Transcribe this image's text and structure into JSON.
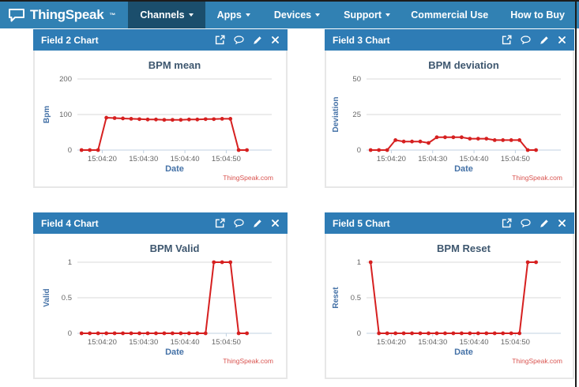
{
  "navbar": {
    "brand": "ThingSpeak",
    "brand_tm": "™",
    "items": [
      {
        "label": "Channels",
        "active": true
      },
      {
        "label": "Apps",
        "active": false
      },
      {
        "label": "Devices",
        "active": false
      },
      {
        "label": "Support",
        "active": false
      }
    ],
    "right_items": [
      {
        "label": "Commercial Use"
      },
      {
        "label": "How to Buy"
      }
    ]
  },
  "panels": [
    {
      "header": "Field 2 Chart",
      "icons": [
        "open-external-icon",
        "comment-icon",
        "edit-pencil-icon",
        "close-icon"
      ]
    },
    {
      "header": "Field 3 Chart",
      "icons": [
        "open-external-icon",
        "comment-icon",
        "edit-pencil-icon",
        "close-icon"
      ]
    },
    {
      "header": "Field 4 Chart",
      "icons": [
        "open-external-icon",
        "comment-icon",
        "edit-pencil-icon",
        "close-icon"
      ]
    },
    {
      "header": "Field 5 Chart",
      "icons": [
        "open-external-icon",
        "comment-icon",
        "edit-pencil-icon",
        "close-icon"
      ]
    }
  ],
  "colors": {
    "navbar_bg": "#3181b3",
    "navbar_active_bg": "#1b4e6c",
    "panel_header_bg": "#2e7cb5",
    "series_red": "#d62020",
    "credits_red": "#d9534f",
    "title_blue": "#3E576F",
    "axis_title_blue": "#4572A7",
    "tick_label_gray": "#666666",
    "grid_gray": "#d8d8d8",
    "axis_line_blue": "#c0d0e0"
  },
  "chart_data": [
    {
      "type": "line",
      "title": "BPM mean",
      "xlabel": "Date",
      "ylabel": "Bpm",
      "credits": "ThingSpeak.com",
      "ylim": [
        0,
        200
      ],
      "yticks": [
        0,
        100,
        200
      ],
      "ytick_labels": [
        "0",
        "100",
        "200"
      ],
      "xlim": [
        14,
        61
      ],
      "xticks": [
        20,
        30,
        40,
        50
      ],
      "xtick_labels": [
        "15:04:20",
        "15:04:30",
        "15:04:40",
        "15:04:50"
      ],
      "x_seconds": [
        15,
        17,
        19,
        21,
        23,
        25,
        27,
        29,
        31,
        33,
        35,
        37,
        39,
        41,
        43,
        45,
        47,
        49,
        51,
        53,
        55
      ],
      "values": [
        0,
        0,
        0,
        91,
        90,
        89,
        88,
        87,
        86,
        86,
        85,
        85,
        85,
        86,
        86,
        87,
        87,
        88,
        88,
        0,
        0
      ],
      "grid": true,
      "legend": false
    },
    {
      "type": "line",
      "title": "BPM deviation",
      "xlabel": "Date",
      "ylabel": "Deviation",
      "credits": "ThingSpeak.com",
      "ylim": [
        0,
        50
      ],
      "yticks": [
        0,
        25,
        50
      ],
      "ytick_labels": [
        "0",
        "25",
        "50"
      ],
      "xlim": [
        14,
        61
      ],
      "xticks": [
        20,
        30,
        40,
        50
      ],
      "xtick_labels": [
        "15:04:20",
        "15:04:30",
        "15:04:40",
        "15:04:50"
      ],
      "x_seconds": [
        15,
        17,
        19,
        21,
        23,
        25,
        27,
        29,
        31,
        33,
        35,
        37,
        39,
        41,
        43,
        45,
        47,
        49,
        51,
        53,
        55
      ],
      "values": [
        0,
        0,
        0,
        7,
        6,
        6,
        6,
        5,
        9,
        9,
        9,
        9,
        8,
        8,
        8,
        7,
        7,
        7,
        7,
        0,
        0
      ],
      "grid": true,
      "legend": false
    },
    {
      "type": "line",
      "title": "BPM Valid",
      "xlabel": "Date",
      "ylabel": "Valid",
      "credits": "ThingSpeak.com",
      "ylim": [
        0,
        1
      ],
      "yticks": [
        0,
        0.5,
        1
      ],
      "ytick_labels": [
        "0",
        "0.5",
        "1"
      ],
      "xlim": [
        14,
        61
      ],
      "xticks": [
        20,
        30,
        40,
        50
      ],
      "xtick_labels": [
        "15:04:20",
        "15:04:30",
        "15:04:40",
        "15:04:50"
      ],
      "x_seconds": [
        15,
        17,
        19,
        21,
        23,
        25,
        27,
        29,
        31,
        33,
        35,
        37,
        39,
        41,
        43,
        45,
        47,
        49,
        51,
        53,
        55
      ],
      "values": [
        0,
        0,
        0,
        0,
        0,
        0,
        0,
        0,
        0,
        0,
        0,
        0,
        0,
        0,
        0,
        0,
        1,
        1,
        1,
        0,
        0
      ],
      "grid": true,
      "legend": false
    },
    {
      "type": "line",
      "title": "BPM Reset",
      "xlabel": "Date",
      "ylabel": "Reset",
      "credits": "ThingSpeak.com",
      "ylim": [
        0,
        1
      ],
      "yticks": [
        0,
        0.5,
        1
      ],
      "ytick_labels": [
        "0",
        "0.5",
        "1"
      ],
      "xlim": [
        14,
        61
      ],
      "xticks": [
        20,
        30,
        40,
        50
      ],
      "xtick_labels": [
        "15:04:20",
        "15:04:30",
        "15:04:40",
        "15:04:50"
      ],
      "x_seconds": [
        15,
        17,
        19,
        21,
        23,
        25,
        27,
        29,
        31,
        33,
        35,
        37,
        39,
        41,
        43,
        45,
        47,
        49,
        51,
        53,
        55
      ],
      "values": [
        1,
        0,
        0,
        0,
        0,
        0,
        0,
        0,
        0,
        0,
        0,
        0,
        0,
        0,
        0,
        0,
        0,
        0,
        0,
        1,
        1
      ],
      "grid": true,
      "legend": false
    }
  ]
}
